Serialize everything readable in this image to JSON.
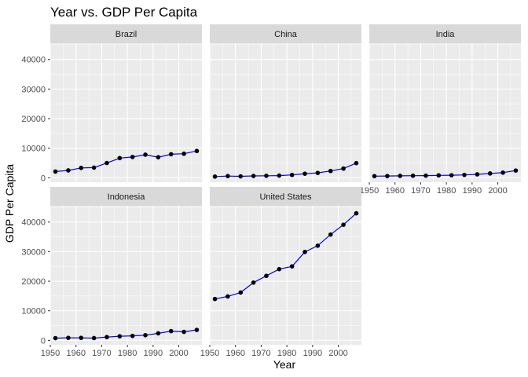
{
  "chart_data": {
    "type": "line",
    "title": "Year vs. GDP Per Capita",
    "xlabel": "Year",
    "ylabel": "GDP Per Capita",
    "x": [
      1952,
      1957,
      1962,
      1967,
      1972,
      1977,
      1982,
      1987,
      1992,
      1997,
      2002,
      2007
    ],
    "xlim": [
      1950,
      2009
    ],
    "ylim": [
      -1500,
      45500
    ],
    "xticks": [
      1950,
      1960,
      1970,
      1980,
      1990,
      2000
    ],
    "yticks": [
      0,
      10000,
      20000,
      30000,
      40000
    ],
    "grid": true,
    "line_color": "#0000ff",
    "point_color": "#000000",
    "panel_background": "#ebebeb",
    "strip_background": "#d9d9d9",
    "series": [
      {
        "name": "Brazil",
        "values": [
          2108,
          2487,
          3337,
          3430,
          4986,
          6660,
          7031,
          7807,
          6950,
          7958,
          8131,
          9066
        ]
      },
      {
        "name": "China",
        "values": [
          400,
          576,
          488,
          613,
          677,
          741,
          962,
          1379,
          1656,
          2290,
          3119,
          4959
        ]
      },
      {
        "name": "India",
        "values": [
          547,
          590,
          658,
          701,
          724,
          813,
          856,
          977,
          1164,
          1459,
          1747,
          2452
        ]
      },
      {
        "name": "Indonesia",
        "values": [
          750,
          859,
          849,
          762,
          1111,
          1383,
          1517,
          1748,
          2383,
          3119,
          2874,
          3541
        ]
      },
      {
        "name": "United States",
        "values": [
          13990,
          14847,
          16173,
          19530,
          21806,
          24073,
          25010,
          29884,
          32004,
          35767,
          39097,
          42952
        ]
      }
    ]
  }
}
